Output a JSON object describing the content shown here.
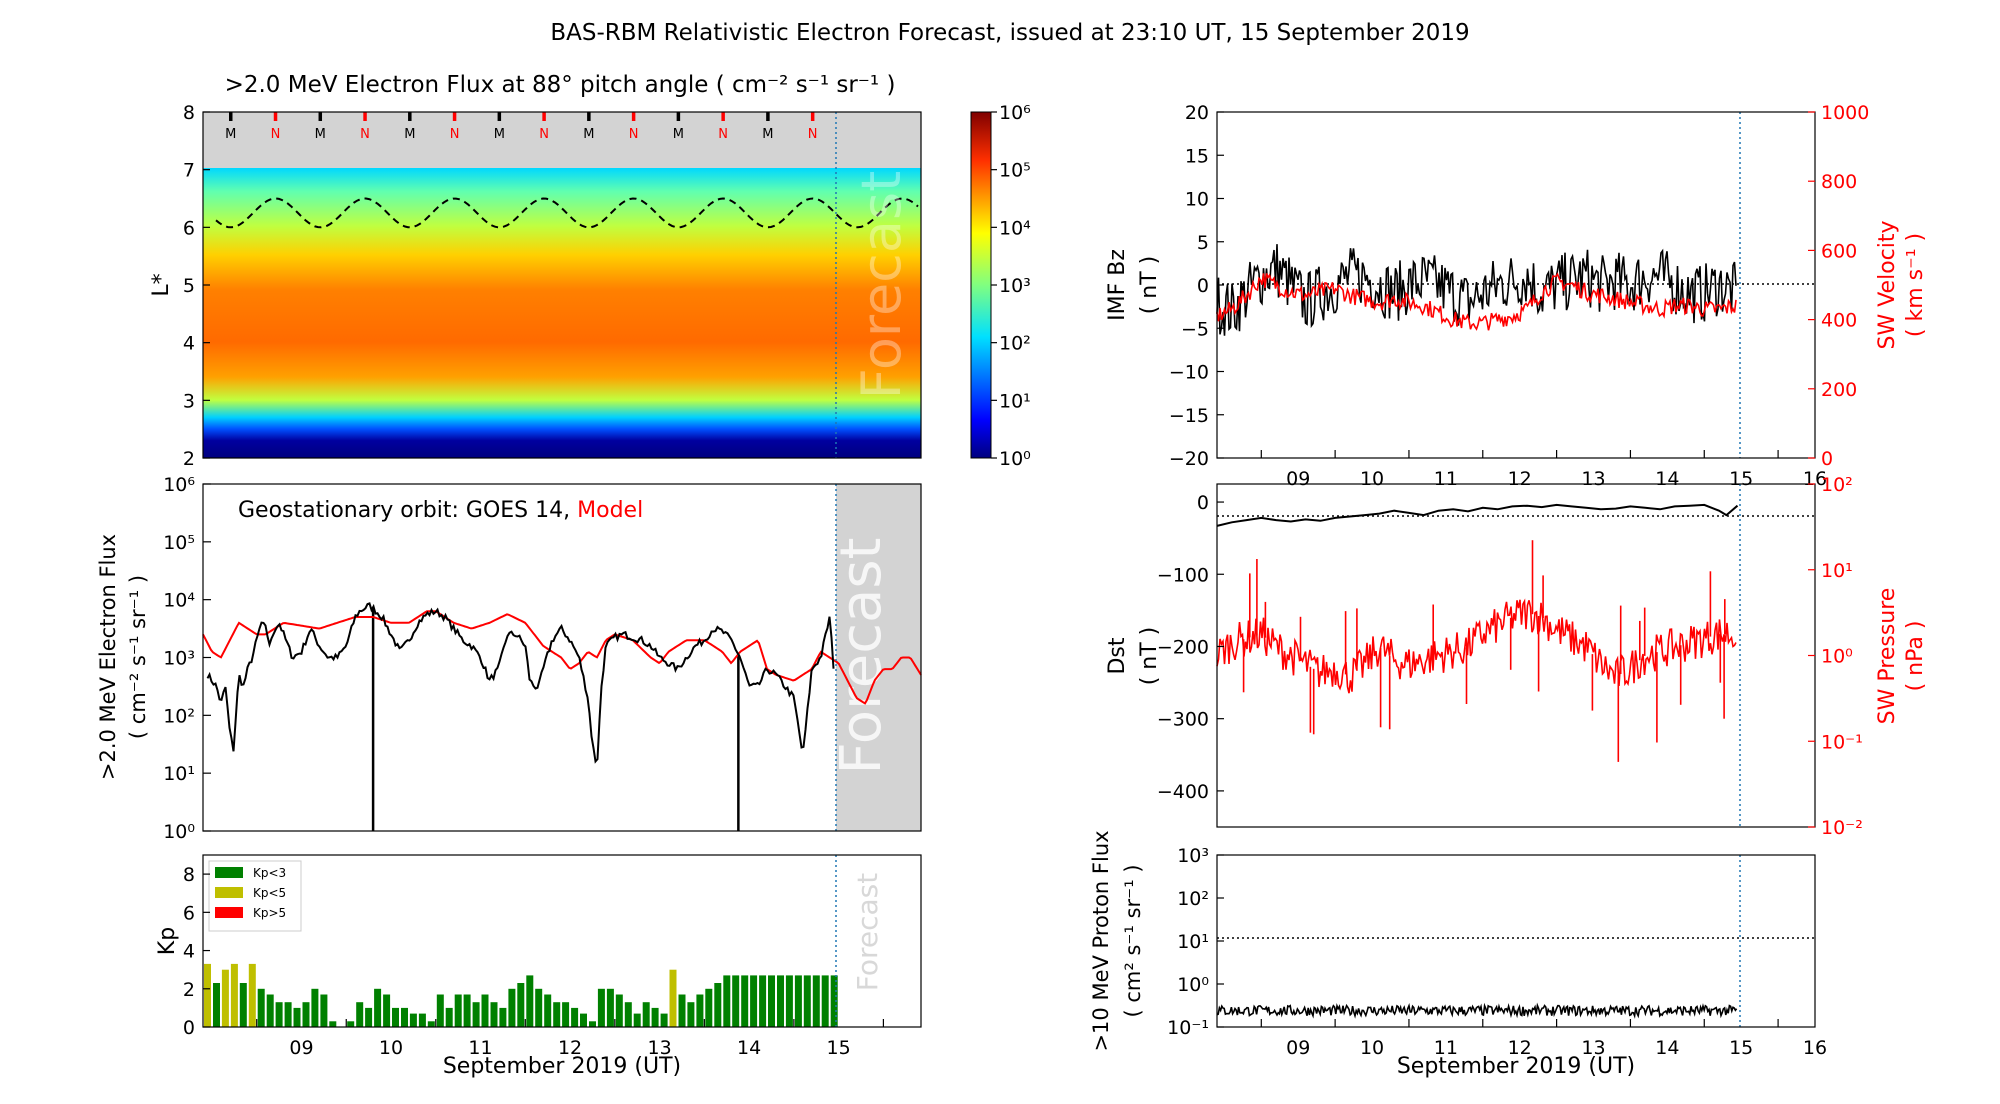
{
  "figure": {
    "title": "BAS-RBM Relativistic Electron Forecast, issued at 23:10 UT, 15 September 2019",
    "x_axis_label": "September 2019 (UT)",
    "day_ticks": [
      "09",
      "10",
      "11",
      "12",
      "13",
      "14",
      "15",
      "16"
    ]
  },
  "colors": {
    "model": "#ff0000",
    "observed": "#000000",
    "forecast_shade": "#d3d3d3",
    "forecast_line": "#1f77b4",
    "kp_low": "#008000",
    "kp_mid": "#bfbf00",
    "kp_high": "#ff0000"
  },
  "chart_data": [
    {
      "id": "flux_map",
      "type": "heatmap",
      "title": ">2.0 MeV Electron Flux at 88° pitch angle ( cm⁻² s⁻¹ sr⁻¹ )",
      "ylabel": "L*",
      "ylim": [
        2,
        8
      ],
      "yticks": [
        "2",
        "3",
        "4",
        "5",
        "6",
        "7",
        "8"
      ],
      "xlim_days": [
        8.4,
        16.42
      ],
      "forecast_start_day": 15.45,
      "colorbar": {
        "scale": "log",
        "range": [
          0,
          6
        ],
        "ticks": [
          "10⁰",
          "10¹",
          "10²",
          "10³",
          "10⁴",
          "10⁵",
          "10⁶"
        ]
      },
      "mlt_markers": [
        "M",
        "N",
        "M",
        "N",
        "M",
        "N",
        "M",
        "N",
        "M",
        "N",
        "M",
        "N",
        "M",
        "N"
      ],
      "mlt_marker_days": [
        8.71,
        9.21,
        9.71,
        10.21,
        10.71,
        11.21,
        11.71,
        12.21,
        12.71,
        13.21,
        13.71,
        14.21,
        14.71,
        15.21
      ],
      "magnetopause": {
        "min_L": 6.0,
        "max_L": 6.5,
        "period_days": 1.0
      },
      "background_band": {
        "L_from": 7.0,
        "L_to": 8.0
      },
      "watermark": "Forecast"
    },
    {
      "id": "geo_flux",
      "type": "line",
      "title": "Geostationary orbit:   GOES 14,",
      "model_label": "Model",
      "ylabel": ">2.0 MeV Electron Flux",
      "ylabel_unit": "( cm⁻² s⁻¹ sr⁻¹ )",
      "yscale": "log",
      "ylim_exp": [
        0,
        6
      ],
      "yticks": [
        "10⁰",
        "10¹",
        "10²",
        "10³",
        "10⁴",
        "10⁵",
        "10⁶"
      ],
      "xlim_days": [
        8.4,
        16.42
      ],
      "forecast_start_day": 15.45,
      "watermark": "Forecast",
      "series": [
        {
          "name": "GOES 14",
          "x": [
            8.45,
            8.55,
            8.6,
            8.65,
            8.7,
            8.74,
            8.8,
            8.85,
            8.9,
            8.95,
            9.0,
            9.05,
            9.1,
            9.15,
            9.2,
            9.25,
            9.3,
            9.35,
            9.4,
            9.5,
            9.6,
            9.7,
            9.8,
            9.9,
            10.0,
            10.1,
            10.15,
            10.2,
            10.25,
            10.3,
            10.4,
            10.5,
            10.6,
            10.7,
            10.8,
            10.9,
            11.0,
            11.1,
            11.2,
            11.3,
            11.4,
            11.5,
            11.6,
            11.7,
            11.8,
            11.9,
            12.0,
            12.05,
            12.1,
            12.15,
            12.2,
            12.3,
            12.4,
            12.5,
            12.6,
            12.7,
            12.75,
            12.8,
            12.85,
            12.9,
            13.0,
            13.1,
            13.2,
            13.3,
            13.4,
            13.5,
            13.6,
            13.7,
            13.8,
            13.9,
            14.0,
            14.1,
            14.2,
            14.3,
            14.4,
            14.5,
            14.6,
            14.7,
            14.8,
            14.9,
            15.0,
            15.1,
            15.2,
            15.3,
            15.4,
            15.45
          ],
          "y_exp": [
            2.7,
            2.5,
            2.2,
            2.5,
            1.7,
            1.4,
            2.7,
            2.5,
            2.8,
            3.0,
            3.3,
            3.6,
            3.5,
            3.2,
            3.5,
            3.6,
            3.4,
            3.2,
            3.0,
            3.1,
            3.5,
            3.2,
            3.0,
            3.0,
            3.2,
            3.7,
            3.8,
            3.85,
            3.9,
            3.85,
            3.7,
            3.4,
            3.1,
            3.3,
            3.6,
            3.75,
            3.8,
            3.7,
            3.5,
            3.3,
            3.2,
            3.0,
            2.6,
            2.8,
            3.4,
            3.4,
            3.2,
            2.6,
            2.5,
            2.5,
            2.8,
            3.3,
            3.5,
            3.3,
            3.0,
            2.3,
            1.5,
            1.1,
            2.5,
            3.2,
            3.35,
            3.4,
            3.35,
            3.3,
            3.2,
            3.0,
            2.9,
            2.8,
            3.0,
            3.2,
            3.3,
            3.5,
            3.45,
            3.3,
            3.0,
            2.5,
            2.5,
            2.8,
            2.7,
            2.5,
            2.3,
            1.3,
            2.8,
            3.0,
            3.7,
            2.7
          ],
          "dropouts": [
            10.3,
            14.38
          ]
        },
        {
          "name": "Model",
          "x": [
            8.4,
            8.5,
            8.6,
            8.7,
            8.8,
            8.9,
            9.0,
            9.1,
            9.2,
            9.3,
            9.5,
            9.7,
            9.9,
            10.1,
            10.3,
            10.5,
            10.7,
            10.9,
            11.0,
            11.2,
            11.4,
            11.6,
            11.8,
            12.0,
            12.2,
            12.4,
            12.5,
            12.6,
            12.7,
            12.8,
            12.9,
            13.0,
            13.2,
            13.4,
            13.5,
            13.6,
            13.8,
            14.0,
            14.2,
            14.3,
            14.4,
            14.6,
            14.7,
            14.8,
            15.0,
            15.2,
            15.3,
            15.4,
            15.5,
            15.6,
            15.7,
            15.8,
            15.9,
            16.0,
            16.1,
            16.2,
            16.3,
            16.42
          ],
          "y_exp": [
            3.4,
            3.1,
            3.0,
            3.3,
            3.6,
            3.5,
            3.4,
            3.4,
            3.5,
            3.6,
            3.55,
            3.5,
            3.6,
            3.7,
            3.7,
            3.6,
            3.6,
            3.8,
            3.8,
            3.6,
            3.5,
            3.6,
            3.75,
            3.6,
            3.2,
            3.0,
            2.8,
            2.9,
            3.1,
            3.0,
            3.3,
            3.4,
            3.3,
            3.0,
            2.9,
            3.1,
            3.3,
            3.3,
            3.1,
            2.9,
            3.1,
            3.3,
            2.8,
            2.7,
            2.6,
            2.8,
            3.1,
            3.0,
            2.9,
            2.6,
            2.3,
            2.2,
            2.6,
            2.8,
            2.8,
            3.0,
            3.0,
            2.7
          ]
        }
      ]
    },
    {
      "id": "kp",
      "type": "bar",
      "ylabel": "Kp",
      "ylim": [
        0,
        9
      ],
      "yticks": [
        "0",
        "2",
        "4",
        "6",
        "8"
      ],
      "xlim_days": [
        8.4,
        16.42
      ],
      "forecast_start_day": 15.45,
      "legend": [
        "Kp<3",
        "Kp<5",
        "Kp>5"
      ],
      "legend_position": "top-left",
      "watermark": "Forecast",
      "bar_width_days": 0.1,
      "kp_start_day": 8.4,
      "values": [
        3.3,
        2.3,
        3.0,
        3.3,
        2.3,
        3.3,
        2.0,
        1.7,
        1.3,
        1.3,
        1.0,
        1.3,
        2.0,
        1.7,
        0.3,
        0.0,
        0.3,
        1.3,
        1.0,
        2.0,
        1.7,
        1.0,
        1.0,
        0.7,
        0.7,
        0.3,
        1.7,
        1.0,
        1.7,
        1.7,
        1.3,
        1.7,
        1.3,
        1.0,
        2.0,
        2.3,
        2.7,
        2.0,
        1.7,
        1.3,
        1.3,
        1.0,
        0.7,
        0.3,
        2.0,
        2.0,
        1.7,
        1.3,
        0.7,
        1.3,
        1.0,
        0.7,
        3.0,
        1.7,
        1.3,
        1.7,
        2.0,
        2.3,
        2.7,
        2.7,
        2.7,
        2.7,
        2.7,
        2.7,
        2.7,
        2.7,
        2.7,
        2.7,
        2.7,
        2.7,
        2.7
      ]
    },
    {
      "id": "imf_bz",
      "type": "line",
      "ylabel": "IMF Bz",
      "ylabel_unit": "( nT )",
      "ylim": [
        -20,
        20
      ],
      "yticks": [
        "−20",
        "−15",
        "−10",
        "−5",
        "0",
        "5",
        "10",
        "15",
        "20"
      ],
      "right_ylabel": "SW Velocity",
      "right_ylabel_unit": "( km s⁻¹ )",
      "right_ylim": [
        0,
        1000
      ],
      "right_yticks": [
        "0",
        "200",
        "400",
        "600",
        "800",
        "1000"
      ],
      "xlim_days": [
        8.4,
        16.5
      ],
      "forecast_start_day": 15.45,
      "xticks": [
        "09",
        "10",
        "11",
        "12",
        "13",
        "14",
        "15",
        "16"
      ],
      "series": [
        {
          "name": "IMF Bz",
          "x": [
            8.4,
            8.6,
            8.8,
            9.0,
            9.2,
            9.4,
            9.6,
            9.8,
            10.0,
            10.2,
            10.4,
            10.6,
            10.8,
            11.0,
            11.2,
            11.4,
            11.6,
            11.8,
            12.0,
            12.2,
            12.4,
            12.6,
            12.8,
            13.0,
            13.2,
            13.4,
            13.6,
            13.8,
            14.0,
            14.2,
            14.4,
            14.6,
            14.8,
            15.0,
            15.2,
            15.45
          ],
          "y": [
            -2,
            -3,
            -1,
            1,
            2,
            0,
            -2,
            -1,
            0,
            1,
            1,
            0,
            -1,
            0,
            0.5,
            0,
            -1,
            -2,
            -1,
            0,
            0.5,
            1,
            -1,
            0,
            0.5,
            1,
            0,
            0.5,
            0,
            1,
            1,
            0,
            -1,
            -1,
            0,
            -1
          ],
          "noise_amp": 3.5
        },
        {
          "name": "SW Velocity",
          "x": [
            8.4,
            8.6,
            8.8,
            9.0,
            9.2,
            9.4,
            9.6,
            9.8,
            10.0,
            10.2,
            10.4,
            10.6,
            10.8,
            11.0,
            11.2,
            11.4,
            11.6,
            11.8,
            12.0,
            12.2,
            12.4,
            12.6,
            12.8,
            13.0,
            13.2,
            13.4,
            13.6,
            13.8,
            14.0,
            14.2,
            14.4,
            14.6,
            14.8,
            15.0,
            15.2,
            15.45
          ],
          "y": [
            410,
            430,
            470,
            520,
            500,
            480,
            470,
            480,
            490,
            470,
            460,
            450,
            460,
            450,
            440,
            420,
            400,
            390,
            390,
            400,
            410,
            430,
            480,
            510,
            500,
            480,
            470,
            460,
            450,
            440,
            430,
            440,
            440,
            430,
            430,
            440
          ],
          "noise_amp": 25
        }
      ]
    },
    {
      "id": "dst",
      "type": "line",
      "ylabel": "Dst",
      "ylabel_unit": "( nT )",
      "ylim": [
        -450,
        25
      ],
      "yticks": [
        "−400",
        "−300",
        "−200",
        "−100",
        "0"
      ],
      "right_ylabel": "SW Pressure",
      "right_ylabel_unit": "( nPa )",
      "right_yscale": "log",
      "right_ylim_exp": [
        -2,
        2
      ],
      "right_yticks": [
        "10⁻²",
        "10⁻¹",
        "10⁰",
        "10¹",
        "10²"
      ],
      "xlim_days": [
        8.4,
        16.5
      ],
      "forecast_start_day": 15.45,
      "series": [
        {
          "name": "Dst",
          "x": [
            8.4,
            8.6,
            8.8,
            9.0,
            9.2,
            9.4,
            9.6,
            9.8,
            10.0,
            10.2,
            10.4,
            10.6,
            10.8,
            11.0,
            11.2,
            11.4,
            11.6,
            11.8,
            12.0,
            12.2,
            12.4,
            12.6,
            12.8,
            13.0,
            13.2,
            13.4,
            13.6,
            13.8,
            14.0,
            14.2,
            14.4,
            14.6,
            14.8,
            15.0,
            15.2,
            15.3,
            15.45
          ],
          "y": [
            -33,
            -28,
            -25,
            -22,
            -25,
            -27,
            -24,
            -26,
            -22,
            -20,
            -18,
            -16,
            -12,
            -15,
            -18,
            -12,
            -10,
            -13,
            -8,
            -10,
            -6,
            -5,
            -7,
            -4,
            -6,
            -8,
            -10,
            -9,
            -6,
            -8,
            -10,
            -6,
            -5,
            -4,
            -12,
            -18,
            -5
          ]
        },
        {
          "name": "SW Pressure",
          "x": [
            8.4,
            8.6,
            8.8,
            9.0,
            9.2,
            9.4,
            9.6,
            9.8,
            10.0,
            10.2,
            10.4,
            10.6,
            10.8,
            11.0,
            11.2,
            11.4,
            11.6,
            11.8,
            12.0,
            12.2,
            12.4,
            12.6,
            12.8,
            13.0,
            13.2,
            13.4,
            13.6,
            13.8,
            14.0,
            14.2,
            14.4,
            14.6,
            14.8,
            15.0,
            15.2,
            15.45
          ],
          "y_exp": [
            0.0,
            0.15,
            0.2,
            0.25,
            0.1,
            0.0,
            -0.1,
            -0.2,
            -0.15,
            -0.25,
            -0.1,
            0.1,
            -0.05,
            -0.1,
            -0.05,
            0.0,
            0.05,
            0.1,
            0.25,
            0.35,
            0.45,
            0.5,
            0.45,
            0.3,
            0.2,
            0.1,
            -0.1,
            -0.25,
            -0.15,
            0.0,
            0.05,
            0.1,
            0.15,
            0.2,
            0.25,
            0.25
          ],
          "noise_amp": 0.22
        }
      ]
    },
    {
      "id": "proton",
      "type": "line",
      "ylabel": ">10 MeV Proton Flux",
      "ylabel_unit": "( cm² s⁻¹ sr⁻¹ )",
      "yscale": "log",
      "ylim_exp": [
        -1,
        3
      ],
      "yticks": [
        "10⁻¹",
        "10⁰",
        "10¹",
        "10²",
        "10³"
      ],
      "threshold": 10,
      "xlim_days": [
        8.4,
        16.5
      ],
      "forecast_start_day": 15.45,
      "xticks": [
        "09",
        "10",
        "11",
        "12",
        "13",
        "14",
        "15",
        "16"
      ],
      "series": [
        {
          "name": ">10 MeV Proton Flux",
          "x": [
            8.4,
            15.45
          ],
          "y_exp": [
            -0.62,
            -0.62
          ],
          "noise_amp": 0.12
        }
      ]
    }
  ]
}
